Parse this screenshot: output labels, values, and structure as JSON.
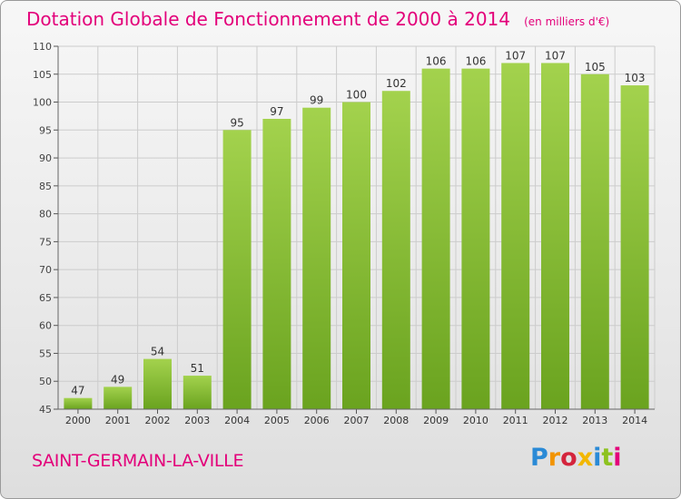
{
  "title": "Dotation Globale de Fonctionnement de 2000 à 2014",
  "unit_note": "(en milliers d'€)",
  "commune": "SAINT-GERMAIN-LA-VILLE",
  "logo": {
    "letters": [
      "P",
      "r",
      "o",
      "x",
      "i",
      "t",
      "i"
    ],
    "colors": [
      "#2a8ad6",
      "#f29400",
      "#d4243c",
      "#f2b700",
      "#2a8ad6",
      "#8dc21f",
      "#e3007a"
    ]
  },
  "colors": {
    "title": "#e3007a",
    "bar_light": "#a3d24d",
    "bar_dark": "#6aa31f",
    "grid": "#cccccc"
  },
  "chart_data": {
    "type": "bar",
    "categories": [
      "2000",
      "2001",
      "2002",
      "2003",
      "2004",
      "2005",
      "2006",
      "2007",
      "2008",
      "2009",
      "2010",
      "2011",
      "2012",
      "2013",
      "2014"
    ],
    "values": [
      47,
      49,
      54,
      51,
      95,
      97,
      99,
      100,
      102,
      106,
      106,
      107,
      107,
      105,
      103
    ],
    "ylim": [
      45,
      110
    ],
    "yticks": [
      45,
      50,
      55,
      60,
      65,
      70,
      75,
      80,
      85,
      90,
      95,
      100,
      105,
      110
    ],
    "grid": true,
    "data_labels": true
  }
}
